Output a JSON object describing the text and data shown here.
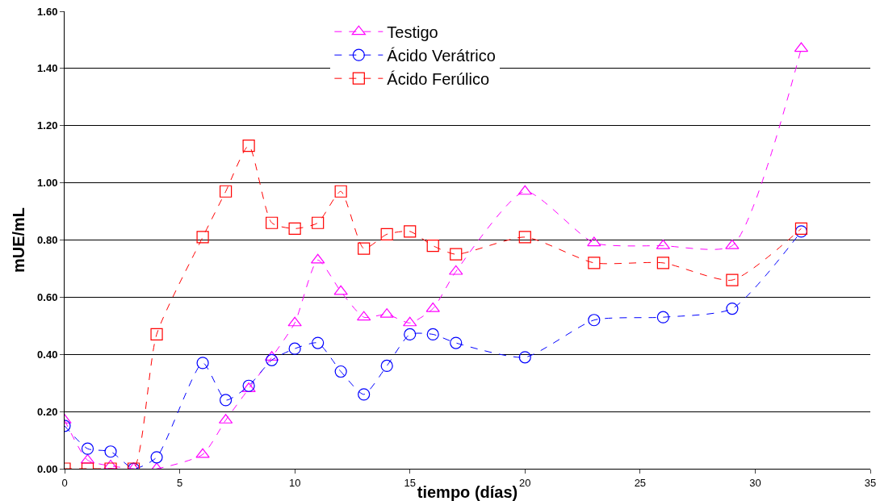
{
  "chart_data": {
    "type": "line",
    "xlabel": "tiempo (días)",
    "ylabel": "mUE/mL",
    "x": [
      0,
      1,
      2,
      3,
      4,
      6,
      7,
      8,
      9,
      10,
      11,
      12,
      13,
      14,
      15,
      16,
      17,
      20,
      23,
      26,
      29,
      32
    ],
    "series": [
      {
        "name": "Testigo",
        "color": "#ff00ff",
        "marker": "triangle",
        "values": [
          0.17,
          0.03,
          0.01,
          0.0,
          0.0,
          0.05,
          0.17,
          0.28,
          0.39,
          0.51,
          0.73,
          0.62,
          0.53,
          0.54,
          0.51,
          0.56,
          0.69,
          0.97,
          0.79,
          0.78,
          0.78,
          1.47
        ]
      },
      {
        "name": "Ácido Verátrico",
        "color": "#0000ff",
        "marker": "circle",
        "values": [
          0.15,
          0.07,
          0.06,
          0.0,
          0.04,
          0.37,
          0.24,
          0.29,
          0.38,
          0.42,
          0.44,
          0.34,
          0.26,
          0.36,
          0.47,
          0.47,
          0.44,
          0.39,
          0.52,
          0.53,
          0.56,
          0.83
        ]
      },
      {
        "name": "Ácido Ferúlico",
        "color": "#ff0000",
        "marker": "square",
        "values": [
          0.0,
          0.0,
          0.0,
          0.0,
          0.47,
          0.81,
          0.97,
          1.13,
          0.86,
          0.84,
          0.86,
          0.97,
          0.77,
          0.82,
          0.83,
          0.78,
          0.75,
          0.81,
          0.72,
          0.72,
          0.66,
          0.84
        ]
      }
    ],
    "xlim": [
      0,
      35
    ],
    "xticks": [
      0,
      5,
      10,
      15,
      20,
      25,
      30,
      35
    ],
    "ylim": [
      0,
      1.6
    ],
    "yticks": [
      {
        "value": 0,
        "label": "0.00"
      },
      {
        "value": 0.2,
        "label": "0.20"
      },
      {
        "value": 0.4,
        "label": "0.40"
      },
      {
        "value": 0.6,
        "label": "0.60"
      },
      {
        "value": 0.8,
        "label": "0.80"
      },
      {
        "value": 1.0,
        "label": "1.00"
      },
      {
        "value": 1.2,
        "label": "1.20"
      },
      {
        "value": 1.4,
        "label": "1.40"
      },
      {
        "value": 1.6,
        "label": "1.60"
      }
    ],
    "grid": "y",
    "legend": "top",
    "line_style": "dashed"
  }
}
